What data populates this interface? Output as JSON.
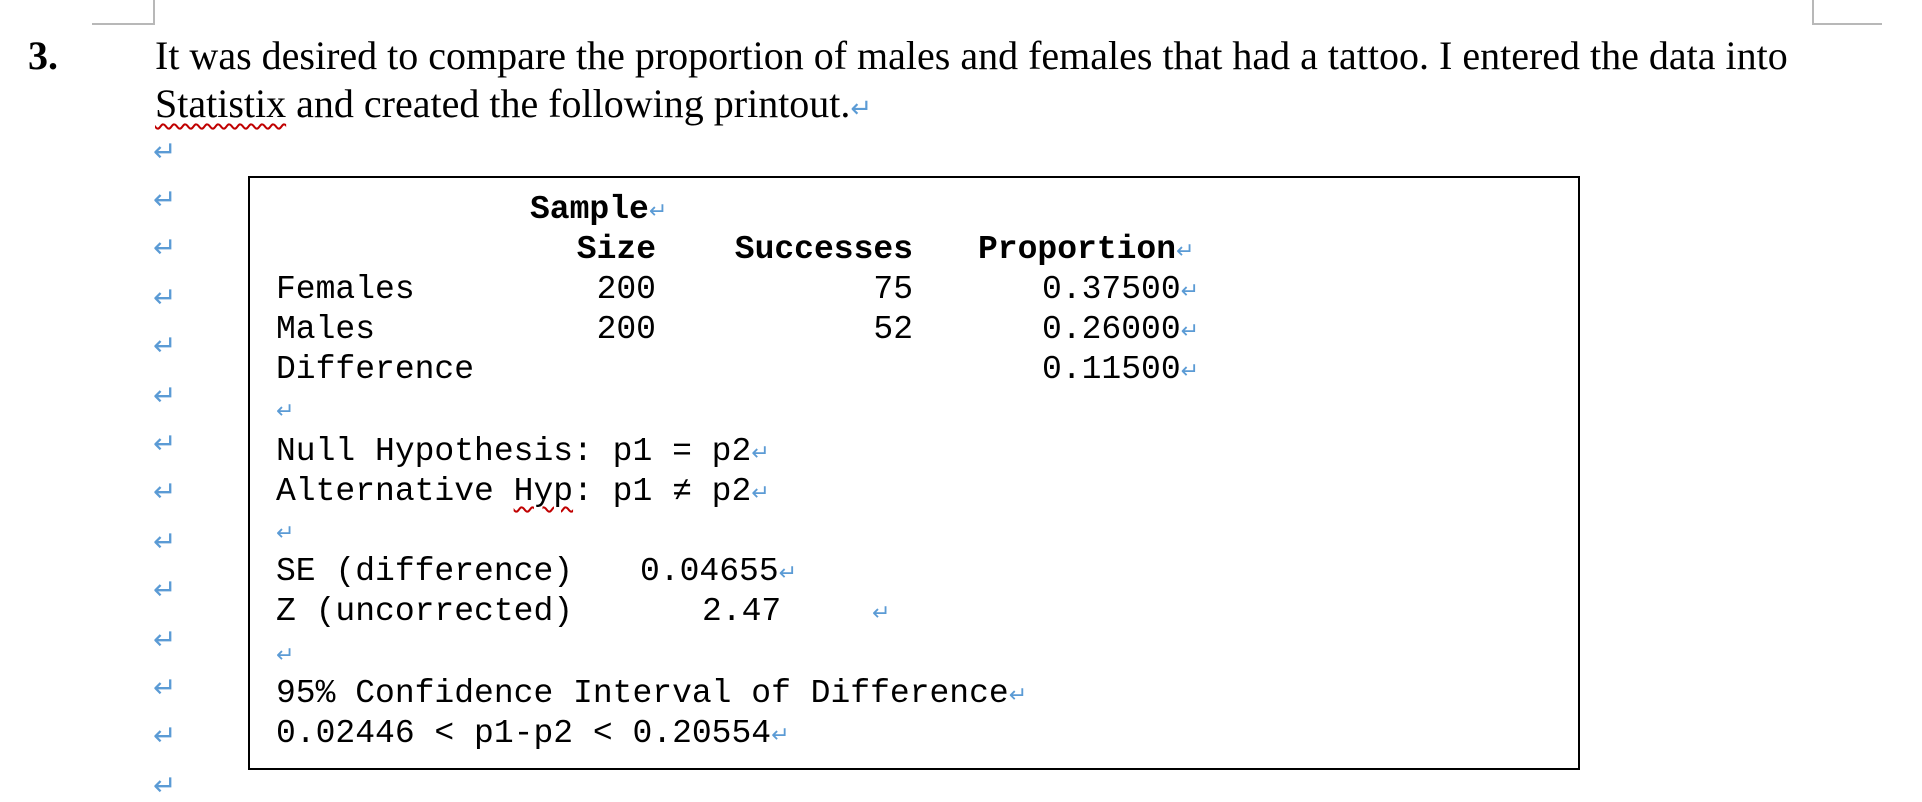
{
  "question": {
    "number": "3.",
    "text_part1": "It was desired to compare the proportion of males and females that had a tattoo. I entered the data into ",
    "text_squiggle": "Statistix",
    "text_part2": " and created the following printout."
  },
  "paragraph_mark": "↵",
  "printout": {
    "headers": {
      "sample": "Sample",
      "size": "Size",
      "successes": "Successes",
      "proportion": "Proportion"
    },
    "rows": [
      {
        "label": "Females",
        "size": "200",
        "successes": "75",
        "proportion": "0.37500"
      },
      {
        "label": "Males",
        "size": "200",
        "successes": "52",
        "proportion": "0.26000"
      },
      {
        "label": "Difference",
        "size": "",
        "successes": "",
        "proportion": "0.11500"
      }
    ],
    "null_hypothesis": "Null Hypothesis: p1 = p2",
    "alt_hyp_prefix": "Alternative ",
    "alt_hyp_squiggle": "Hyp",
    "alt_hyp_suffix": ": p1 ≠ p2",
    "se_label": "SE (difference)",
    "se_value": "0.04655",
    "z_label": "Z (uncorrected)",
    "z_value": "2.47",
    "ci_title": "95% Confidence Interval of Difference",
    "ci_value": "0.02446 < p1-p2 < 0.20554"
  }
}
